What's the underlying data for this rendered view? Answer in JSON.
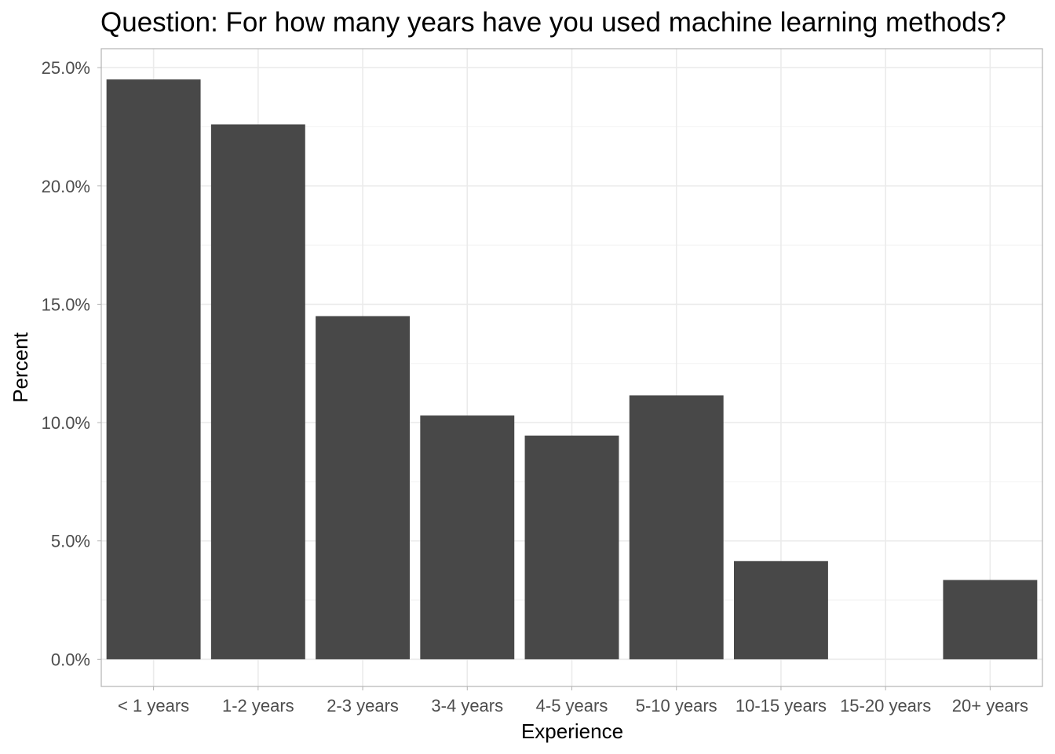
{
  "chart_data": {
    "type": "bar",
    "title": "Question: For how many years have you used machine learning methods?",
    "xlabel": "Experience",
    "ylabel": "Percent",
    "categories": [
      "< 1 years",
      "1-2 years",
      "2-3 years",
      "3-4 years",
      "4-5 years",
      "5-10 years",
      "10-15 years",
      "15-20 years",
      "20+ years"
    ],
    "values": [
      24.5,
      22.6,
      14.5,
      10.3,
      9.45,
      11.15,
      4.15,
      0,
      3.35
    ],
    "ylim": [
      -1.15,
      25.8
    ],
    "yticks": [
      0,
      5,
      10,
      15,
      20,
      25
    ],
    "ytick_labels": [
      "0.0%",
      "5.0%",
      "10.0%",
      "15.0%",
      "20.0%",
      "25.0%"
    ],
    "grid": true,
    "bar_color": "#484848",
    "grid_color": "#ebebeb",
    "border_color": "#b3b3b3"
  }
}
